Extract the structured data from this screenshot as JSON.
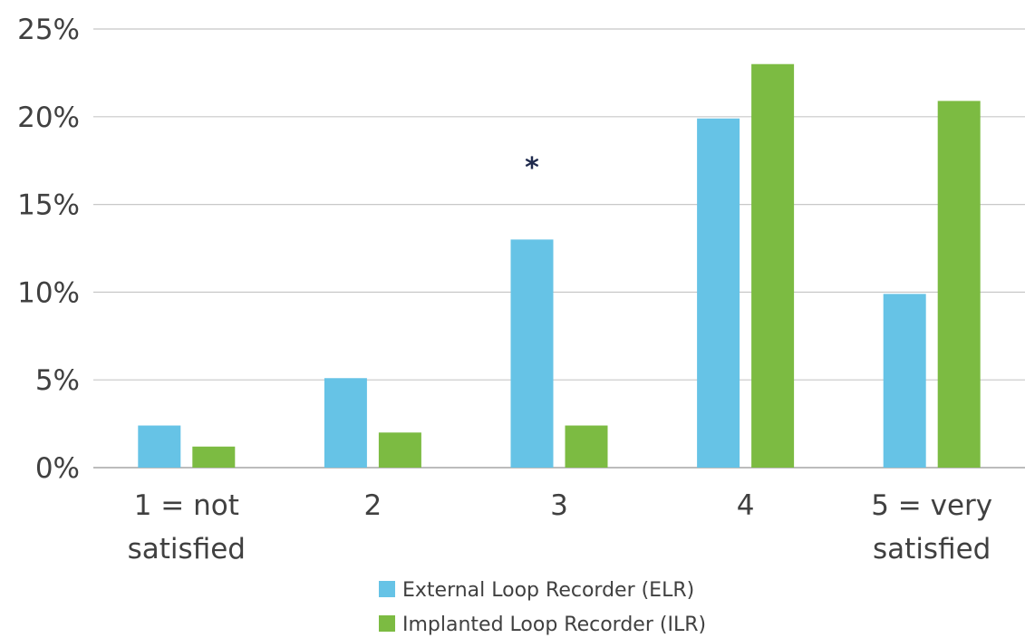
{
  "chart_data": {
    "type": "bar",
    "categories": [
      "1 = not satisfied",
      "2",
      "3",
      "4",
      "5 = very satisfied"
    ],
    "category_lines": [
      [
        "1 = not",
        "satisfied"
      ],
      [
        "2"
      ],
      [
        "3"
      ],
      [
        "4"
      ],
      [
        "5 = very",
        "satisfied"
      ]
    ],
    "series": [
      {
        "name": "External Loop Recorder (ELR)",
        "color": "#66c3e6",
        "values": [
          2.4,
          5.1,
          13.0,
          19.9,
          9.9
        ]
      },
      {
        "name": "Implanted Loop Recorder (ILR)",
        "color": "#7cbb42",
        "values": [
          1.2,
          2.0,
          2.4,
          23.0,
          20.9
        ]
      }
    ],
    "ylim": [
      0,
      25
    ],
    "yticks": [
      0,
      5,
      10,
      15,
      20,
      25
    ],
    "ytick_labels": [
      "0%",
      "5%",
      "10%",
      "15%",
      "20%",
      "25%"
    ],
    "grid": true,
    "legend_position": "bottom",
    "annotations": [
      {
        "category_index": 2,
        "text": "*"
      }
    ],
    "title": "",
    "xlabel": "",
    "ylabel": ""
  }
}
